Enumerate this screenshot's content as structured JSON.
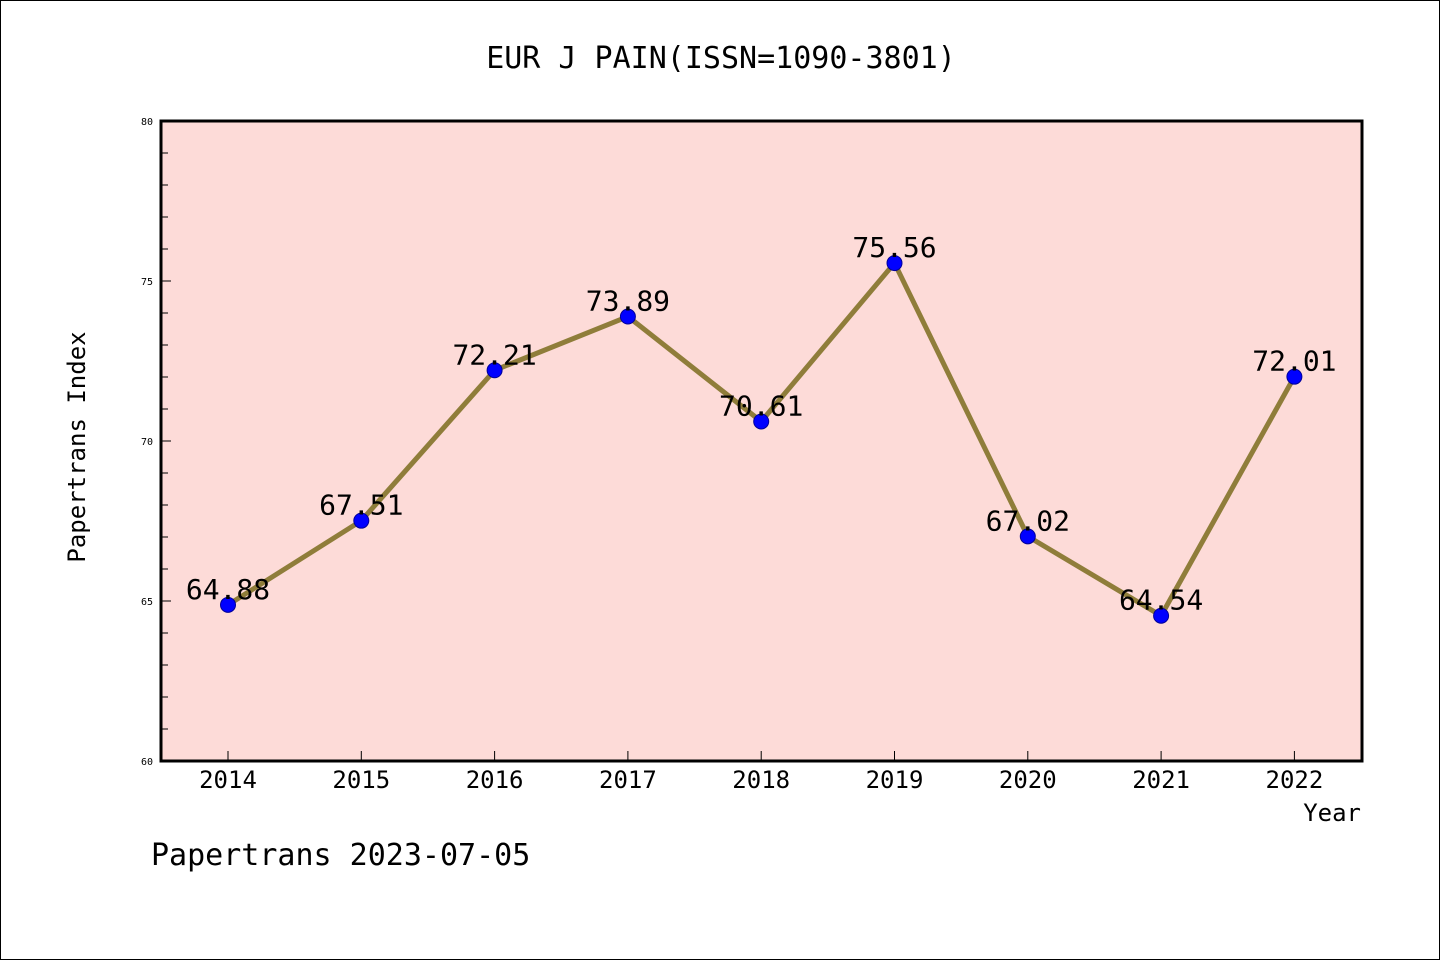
{
  "chart_data": {
    "type": "line",
    "title": "EUR J PAIN(ISSN=1090-3801)",
    "xlabel": "Year",
    "ylabel": "Papertrans Index",
    "categories": [
      "2014",
      "2015",
      "2016",
      "2017",
      "2018",
      "2019",
      "2020",
      "2021",
      "2022"
    ],
    "series": [
      {
        "values": [
          64.88,
          67.51,
          72.21,
          73.89,
          70.61,
          75.56,
          67.02,
          64.54,
          72.01
        ],
        "labels": [
          "64.88",
          "67.51",
          "72.21",
          "73.89",
          "70.61",
          "75.56",
          "67.02",
          "64.54",
          "72.01"
        ]
      }
    ],
    "ylim": [
      60,
      80
    ],
    "yticks": [
      "60",
      "65",
      "70",
      "75",
      "80"
    ],
    "grid": false,
    "colors": {
      "plot_background": "#FDDBD8",
      "line": "#8F7D3A",
      "marker": "#0000FF",
      "marker_edge": "#000099"
    }
  },
  "footer": "Papertrans 2023-07-05"
}
